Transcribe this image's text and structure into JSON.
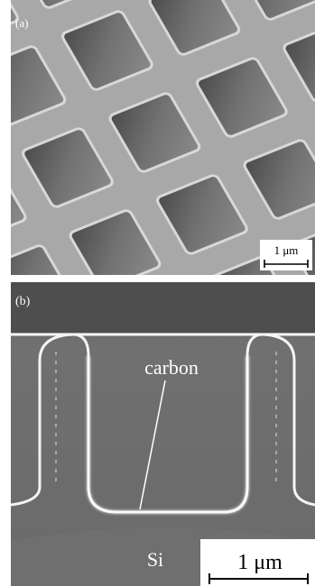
{
  "panels": [
    {
      "label": "(a)",
      "scale_bar": "1 μm"
    },
    {
      "label": "(b)",
      "annotation": "carbon",
      "material": "Si",
      "scale_bar": "1 μm"
    }
  ]
}
